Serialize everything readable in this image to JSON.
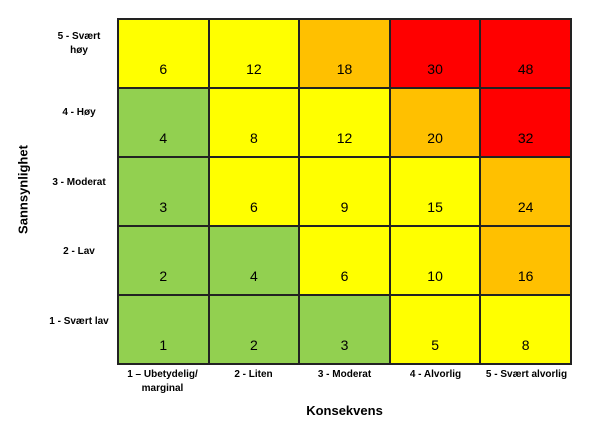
{
  "chart_data": {
    "type": "heatmap",
    "xlabel": "Konsekvens",
    "ylabel": "Sannsynlighet",
    "x_categories": [
      "1 – Ubetydelig/ marginal",
      "2 - Liten",
      "3 - Moderat",
      "4 - Alvorlig",
      "5 - Svært alvorlig"
    ],
    "y_categories": [
      "5 - Svært høy",
      "4 - Høy",
      "3 - Moderat",
      "2 - Lav",
      "1 - Svært lav"
    ],
    "values": [
      [
        6,
        12,
        18,
        30,
        48
      ],
      [
        4,
        8,
        12,
        20,
        32
      ],
      [
        3,
        6,
        9,
        15,
        24
      ],
      [
        2,
        4,
        6,
        10,
        16
      ],
      [
        1,
        2,
        3,
        5,
        8
      ]
    ],
    "colors": {
      "green": "#92d050",
      "yellow": "#ffff00",
      "orange": "#ffc000",
      "red": "#ff0000"
    },
    "cell_colors": [
      [
        "yellow",
        "yellow",
        "orange",
        "red",
        "red"
      ],
      [
        "green",
        "yellow",
        "yellow",
        "orange",
        "red"
      ],
      [
        "green",
        "yellow",
        "yellow",
        "yellow",
        "orange"
      ],
      [
        "green",
        "green",
        "yellow",
        "yellow",
        "orange"
      ],
      [
        "green",
        "green",
        "green",
        "yellow",
        "yellow"
      ]
    ]
  }
}
